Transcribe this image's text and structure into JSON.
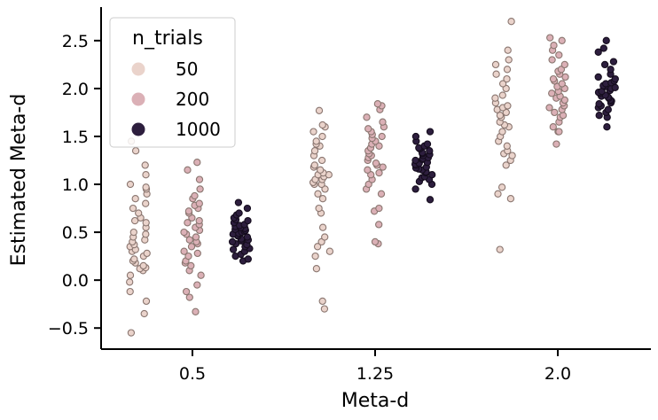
{
  "chart_data": {
    "type": "scatter",
    "subtype": "strip",
    "xlabel": "Meta-d",
    "ylabel": "Estimated Meta-d",
    "categories": [
      "0.5",
      "1.25",
      "2.0"
    ],
    "ylim": [
      -0.72,
      2.85
    ],
    "yticks": [
      "−0.5",
      "0.0",
      "0.5",
      "1.0",
      "1.5",
      "2.0",
      "2.5"
    ],
    "ytick_values": [
      -0.5,
      0.0,
      0.5,
      1.0,
      1.5,
      2.0,
      2.5
    ],
    "grid": false,
    "legend": {
      "title": "n_trials",
      "placement": "top-left",
      "entries": [
        {
          "label": "50",
          "color": "#ead3cb"
        },
        {
          "label": "200",
          "color": "#dbb0b6"
        },
        {
          "label": "1000",
          "color": "#2d1e3e"
        }
      ]
    },
    "series": [
      {
        "legend_label": "50",
        "color": "#ead3cb",
        "edge": "#8a7670",
        "points": [
          {
            "cat": 0,
            "values": [
              -0.55,
              -0.35,
              -0.22,
              -0.12,
              -0.02,
              0.05,
              0.1,
              0.12,
              0.13,
              0.15,
              0.18,
              0.2,
              0.22,
              0.25,
              0.28,
              0.3,
              0.32,
              0.35,
              0.37,
              0.4,
              0.42,
              0.45,
              0.48,
              0.5,
              0.55,
              0.6,
              0.62,
              0.65,
              0.7,
              0.75,
              0.8,
              0.85,
              0.9,
              0.95,
              0.97,
              1.0,
              1.1,
              1.2,
              1.35,
              1.45
            ]
          },
          {
            "cat": 1,
            "values": [
              -0.3,
              -0.22,
              0.12,
              0.25,
              0.3,
              0.35,
              0.4,
              0.45,
              0.55,
              0.7,
              0.75,
              0.85,
              0.9,
              0.95,
              1.0,
              1.0,
              1.02,
              1.05,
              1.05,
              1.08,
              1.1,
              1.1,
              1.12,
              1.15,
              1.18,
              1.2,
              1.25,
              1.3,
              1.35,
              1.4,
              1.42,
              1.45,
              1.5,
              1.55,
              1.6,
              1.62,
              1.77
            ]
          },
          {
            "cat": 2,
            "values": [
              0.32,
              0.85,
              0.9,
              0.97,
              1.2,
              1.25,
              1.3,
              1.32,
              1.35,
              1.4,
              1.45,
              1.5,
              1.55,
              1.6,
              1.62,
              1.65,
              1.7,
              1.72,
              1.75,
              1.78,
              1.8,
              1.82,
              1.85,
              1.9,
              1.93,
              2.0,
              2.05,
              2.1,
              2.15,
              2.2,
              2.25,
              2.3,
              2.4,
              2.7
            ]
          }
        ]
      },
      {
        "legend_label": "200",
        "color": "#dbb0b6",
        "edge": "#8a7670",
        "points": [
          {
            "cat": 0,
            "values": [
              -0.33,
              -0.18,
              -0.12,
              -0.05,
              0.05,
              0.1,
              0.15,
              0.18,
              0.2,
              0.25,
              0.28,
              0.3,
              0.35,
              0.38,
              0.4,
              0.42,
              0.45,
              0.48,
              0.5,
              0.52,
              0.55,
              0.58,
              0.6,
              0.62,
              0.65,
              0.7,
              0.72,
              0.75,
              0.78,
              0.8,
              0.85,
              0.88,
              0.95,
              1.05,
              1.15,
              1.23
            ]
          },
          {
            "cat": 1,
            "values": [
              0.38,
              0.4,
              0.58,
              0.72,
              0.75,
              0.9,
              0.95,
              1.0,
              1.05,
              1.1,
              1.12,
              1.15,
              1.18,
              1.2,
              1.22,
              1.25,
              1.28,
              1.3,
              1.32,
              1.35,
              1.38,
              1.4,
              1.42,
              1.45,
              1.48,
              1.5,
              1.52,
              1.55,
              1.58,
              1.6,
              1.65,
              1.7,
              1.78,
              1.82,
              1.84
            ]
          },
          {
            "cat": 2,
            "values": [
              1.42,
              1.55,
              1.55,
              1.6,
              1.65,
              1.7,
              1.72,
              1.75,
              1.78,
              1.8,
              1.82,
              1.85,
              1.88,
              1.9,
              1.92,
              1.95,
              1.97,
              2.0,
              2.02,
              2.05,
              2.08,
              2.1,
              2.12,
              2.15,
              2.18,
              2.2,
              2.25,
              2.3,
              2.35,
              2.4,
              2.45,
              2.5,
              2.53
            ]
          }
        ]
      },
      {
        "legend_label": "1000",
        "color": "#2d1e3e",
        "edge": "#140c1c",
        "points": [
          {
            "cat": 0,
            "values": [
              0.2,
              0.22,
              0.25,
              0.27,
              0.3,
              0.32,
              0.33,
              0.35,
              0.37,
              0.38,
              0.4,
              0.41,
              0.42,
              0.43,
              0.45,
              0.46,
              0.47,
              0.48,
              0.49,
              0.5,
              0.51,
              0.52,
              0.53,
              0.54,
              0.55,
              0.56,
              0.57,
              0.58,
              0.6,
              0.62,
              0.63,
              0.65,
              0.68,
              0.7,
              0.75,
              0.81
            ]
          },
          {
            "cat": 1,
            "values": [
              0.84,
              0.95,
              1.0,
              1.03,
              1.05,
              1.07,
              1.08,
              1.1,
              1.12,
              1.13,
              1.15,
              1.16,
              1.17,
              1.18,
              1.2,
              1.21,
              1.22,
              1.23,
              1.25,
              1.26,
              1.27,
              1.28,
              1.3,
              1.31,
              1.32,
              1.33,
              1.35,
              1.37,
              1.38,
              1.4,
              1.42,
              1.45,
              1.5,
              1.55
            ]
          },
          {
            "cat": 2,
            "values": [
              1.6,
              1.7,
              1.72,
              1.75,
              1.78,
              1.8,
              1.82,
              1.84,
              1.85,
              1.87,
              1.88,
              1.9,
              1.91,
              1.92,
              1.93,
              1.95,
              1.96,
              1.97,
              1.98,
              2.0,
              2.01,
              2.02,
              2.03,
              2.05,
              2.06,
              2.08,
              2.1,
              2.12,
              2.15,
              2.2,
              2.25,
              2.28,
              2.38,
              2.42,
              2.5
            ]
          }
        ]
      }
    ]
  }
}
